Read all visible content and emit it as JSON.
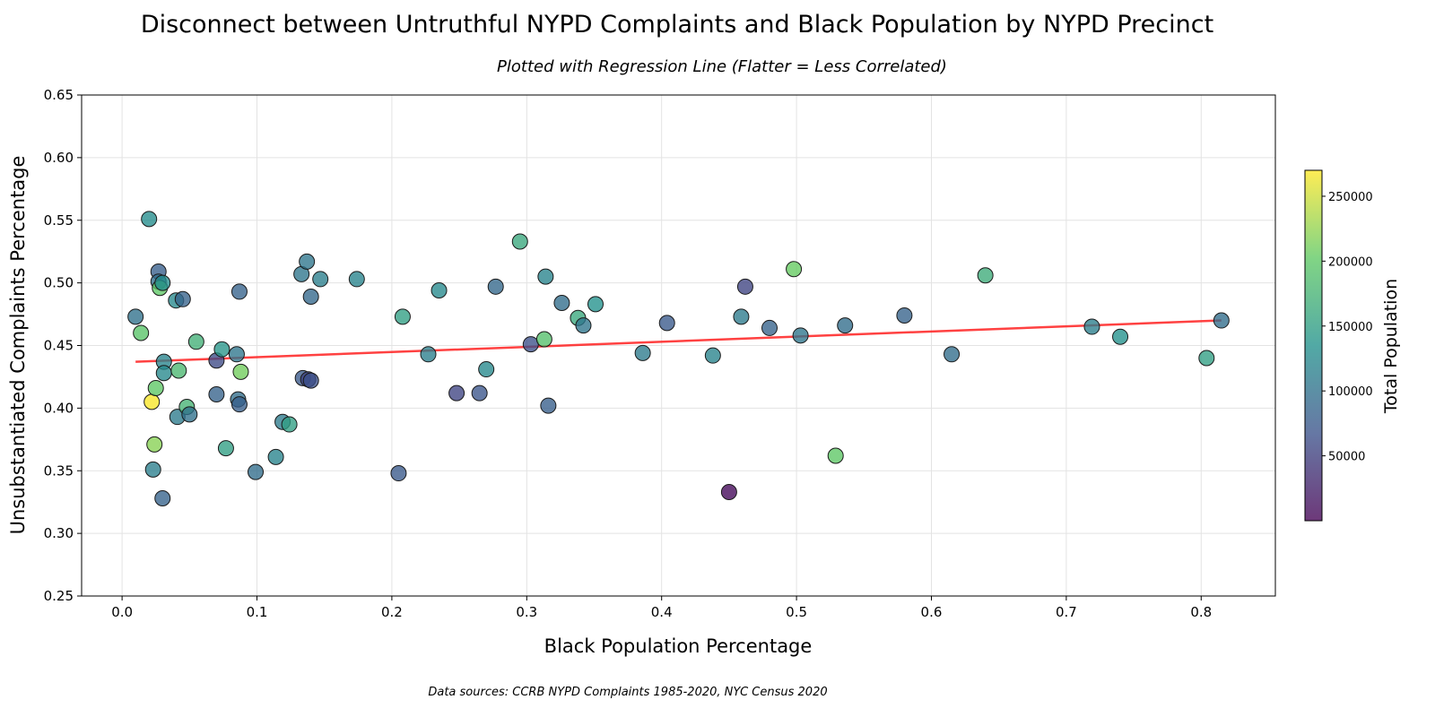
{
  "chart_data": {
    "type": "scatter",
    "title": "Disconnect between Untruthful NYPD Complaints and Black Population by NYPD Precinct",
    "subtitle": "Plotted with Regression Line (Flatter = Less Correlated)",
    "xlabel": "Black Population Percentage",
    "ylabel": "Unsubstantiated Complaints Percentage",
    "xlim": [
      -0.03,
      0.855
    ],
    "ylim": [
      0.25,
      0.65
    ],
    "xticks": [
      0.0,
      0.1,
      0.2,
      0.3,
      0.4,
      0.5,
      0.6,
      0.7,
      0.8
    ],
    "xtick_labels": [
      "0.0",
      "0.1",
      "0.2",
      "0.3",
      "0.4",
      "0.5",
      "0.6",
      "0.7",
      "0.8"
    ],
    "yticks": [
      0.25,
      0.3,
      0.35,
      0.4,
      0.45,
      0.5,
      0.55,
      0.6,
      0.65
    ],
    "ytick_labels": [
      "0.25",
      "0.30",
      "0.35",
      "0.40",
      "0.45",
      "0.50",
      "0.55",
      "0.60",
      "0.65"
    ],
    "grid": true,
    "regression": {
      "x": [
        0.01,
        0.815
      ],
      "y": [
        0.437,
        0.47
      ],
      "color": "#ff2020"
    },
    "colorbar": {
      "label": "Total Population",
      "range": [
        0,
        270000
      ],
      "ticks": [
        50000,
        100000,
        150000,
        200000,
        250000
      ],
      "tick_labels": [
        "50000",
        "100000",
        "150000",
        "200000",
        "250000"
      ]
    },
    "points": [
      {
        "x": 0.01,
        "y": 0.473,
        "pop": 100000
      },
      {
        "x": 0.014,
        "y": 0.46,
        "pop": 195000
      },
      {
        "x": 0.02,
        "y": 0.551,
        "pop": 130000
      },
      {
        "x": 0.022,
        "y": 0.405,
        "pop": 268000
      },
      {
        "x": 0.023,
        "y": 0.351,
        "pop": 115000
      },
      {
        "x": 0.024,
        "y": 0.371,
        "pop": 220000
      },
      {
        "x": 0.025,
        "y": 0.416,
        "pop": 200000
      },
      {
        "x": 0.027,
        "y": 0.509,
        "pop": 80000
      },
      {
        "x": 0.027,
        "y": 0.501,
        "pop": 95000
      },
      {
        "x": 0.028,
        "y": 0.496,
        "pop": 200000
      },
      {
        "x": 0.03,
        "y": 0.5,
        "pop": 130000
      },
      {
        "x": 0.03,
        "y": 0.328,
        "pop": 85000
      },
      {
        "x": 0.031,
        "y": 0.437,
        "pop": 120000
      },
      {
        "x": 0.031,
        "y": 0.428,
        "pop": 125000
      },
      {
        "x": 0.04,
        "y": 0.486,
        "pop": 125000
      },
      {
        "x": 0.041,
        "y": 0.393,
        "pop": 110000
      },
      {
        "x": 0.042,
        "y": 0.43,
        "pop": 180000
      },
      {
        "x": 0.045,
        "y": 0.487,
        "pop": 85000
      },
      {
        "x": 0.048,
        "y": 0.401,
        "pop": 175000
      },
      {
        "x": 0.05,
        "y": 0.395,
        "pop": 100000
      },
      {
        "x": 0.055,
        "y": 0.453,
        "pop": 170000
      },
      {
        "x": 0.07,
        "y": 0.438,
        "pop": 60000
      },
      {
        "x": 0.07,
        "y": 0.411,
        "pop": 85000
      },
      {
        "x": 0.074,
        "y": 0.447,
        "pop": 140000
      },
      {
        "x": 0.077,
        "y": 0.368,
        "pop": 150000
      },
      {
        "x": 0.085,
        "y": 0.443,
        "pop": 105000
      },
      {
        "x": 0.086,
        "y": 0.407,
        "pop": 95000
      },
      {
        "x": 0.087,
        "y": 0.493,
        "pop": 85000
      },
      {
        "x": 0.087,
        "y": 0.403,
        "pop": 80000
      },
      {
        "x": 0.088,
        "y": 0.429,
        "pop": 210000
      },
      {
        "x": 0.099,
        "y": 0.349,
        "pop": 95000
      },
      {
        "x": 0.114,
        "y": 0.361,
        "pop": 120000
      },
      {
        "x": 0.119,
        "y": 0.389,
        "pop": 110000
      },
      {
        "x": 0.124,
        "y": 0.387,
        "pop": 150000
      },
      {
        "x": 0.133,
        "y": 0.507,
        "pop": 105000
      },
      {
        "x": 0.134,
        "y": 0.424,
        "pop": 75000
      },
      {
        "x": 0.137,
        "y": 0.517,
        "pop": 105000
      },
      {
        "x": 0.138,
        "y": 0.423,
        "pop": 55000
      },
      {
        "x": 0.14,
        "y": 0.489,
        "pop": 90000
      },
      {
        "x": 0.14,
        "y": 0.422,
        "pop": 65000
      },
      {
        "x": 0.147,
        "y": 0.503,
        "pop": 115000
      },
      {
        "x": 0.174,
        "y": 0.503,
        "pop": 120000
      },
      {
        "x": 0.205,
        "y": 0.348,
        "pop": 75000
      },
      {
        "x": 0.208,
        "y": 0.473,
        "pop": 150000
      },
      {
        "x": 0.227,
        "y": 0.443,
        "pop": 115000
      },
      {
        "x": 0.235,
        "y": 0.494,
        "pop": 125000
      },
      {
        "x": 0.248,
        "y": 0.412,
        "pop": 55000
      },
      {
        "x": 0.265,
        "y": 0.412,
        "pop": 70000
      },
      {
        "x": 0.27,
        "y": 0.431,
        "pop": 125000
      },
      {
        "x": 0.277,
        "y": 0.497,
        "pop": 90000
      },
      {
        "x": 0.295,
        "y": 0.533,
        "pop": 160000
      },
      {
        "x": 0.303,
        "y": 0.451,
        "pop": 65000
      },
      {
        "x": 0.313,
        "y": 0.455,
        "pop": 190000
      },
      {
        "x": 0.314,
        "y": 0.505,
        "pop": 120000
      },
      {
        "x": 0.316,
        "y": 0.402,
        "pop": 80000
      },
      {
        "x": 0.326,
        "y": 0.484,
        "pop": 95000
      },
      {
        "x": 0.338,
        "y": 0.472,
        "pop": 160000
      },
      {
        "x": 0.342,
        "y": 0.466,
        "pop": 105000
      },
      {
        "x": 0.351,
        "y": 0.483,
        "pop": 135000
      },
      {
        "x": 0.386,
        "y": 0.444,
        "pop": 110000
      },
      {
        "x": 0.404,
        "y": 0.468,
        "pop": 75000
      },
      {
        "x": 0.438,
        "y": 0.442,
        "pop": 120000
      },
      {
        "x": 0.45,
        "y": 0.333,
        "pop": 5000
      },
      {
        "x": 0.459,
        "y": 0.473,
        "pop": 110000
      },
      {
        "x": 0.462,
        "y": 0.497,
        "pop": 55000
      },
      {
        "x": 0.48,
        "y": 0.464,
        "pop": 85000
      },
      {
        "x": 0.498,
        "y": 0.511,
        "pop": 205000
      },
      {
        "x": 0.503,
        "y": 0.458,
        "pop": 105000
      },
      {
        "x": 0.529,
        "y": 0.362,
        "pop": 200000
      },
      {
        "x": 0.536,
        "y": 0.466,
        "pop": 95000
      },
      {
        "x": 0.58,
        "y": 0.474,
        "pop": 85000
      },
      {
        "x": 0.615,
        "y": 0.443,
        "pop": 95000
      },
      {
        "x": 0.64,
        "y": 0.506,
        "pop": 165000
      },
      {
        "x": 0.719,
        "y": 0.465,
        "pop": 115000
      },
      {
        "x": 0.74,
        "y": 0.457,
        "pop": 135000
      },
      {
        "x": 0.804,
        "y": 0.44,
        "pop": 150000
      },
      {
        "x": 0.815,
        "y": 0.47,
        "pop": 95000
      }
    ]
  },
  "footer": {
    "source": "Data sources: CCRB NYPD Complaints 1985-2020, NYC Census 2020"
  }
}
